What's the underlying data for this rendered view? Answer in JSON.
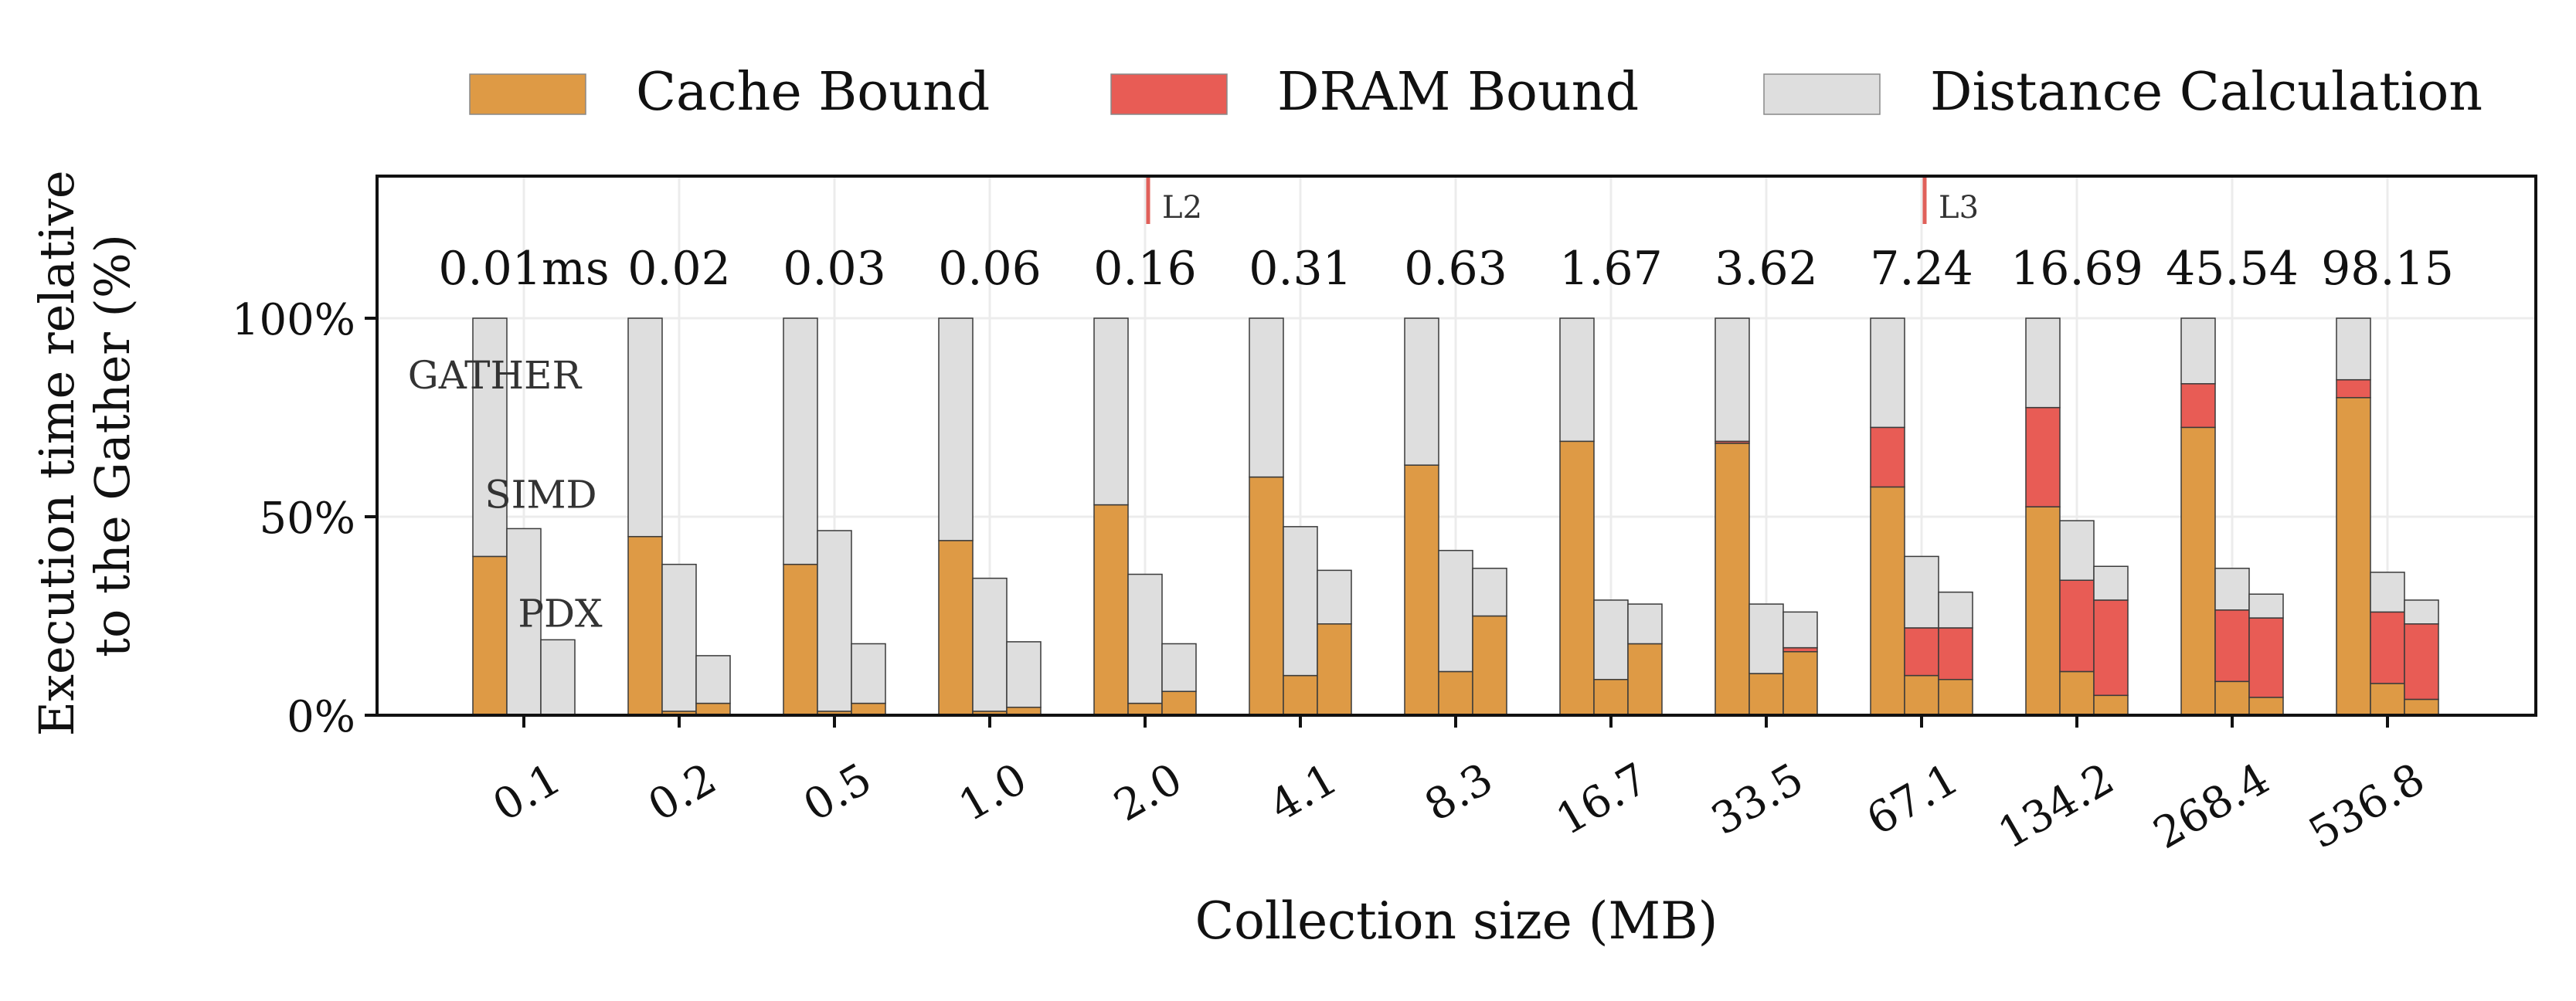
{
  "chart_data": {
    "type": "bar",
    "xlabel": "Collection size (MB)",
    "ylabel_lines": [
      "Execution time relative",
      "to the Gather (%)"
    ],
    "ylim": [
      0,
      1.35
    ],
    "yticks": [
      {
        "value": 0,
        "label": "0%"
      },
      {
        "value": 0.5,
        "label": "50%"
      },
      {
        "value": 1,
        "label": "100%"
      }
    ],
    "grid": true,
    "legend_position": "top",
    "series": [
      {
        "name": "Cache Bound",
        "color": "#de9a45"
      },
      {
        "name": "DRAM Bound",
        "color": "#e85c55"
      },
      {
        "name": "Distance Calculation",
        "color": "#dedede"
      }
    ],
    "methods": [
      "GATHER",
      "SIMD",
      "PDX"
    ],
    "method_label_values": [
      0.85,
      0.55,
      0.25
    ],
    "categories": [
      "0.1",
      "0.2",
      "0.5",
      "1.0",
      "2.0",
      "4.1",
      "8.3",
      "16.7",
      "33.5",
      "67.1",
      "134.2",
      "268.4",
      "536.8"
    ],
    "gather_times": [
      "0.01ms",
      "0.02",
      "0.03",
      "0.06",
      "0.16",
      "0.31",
      "0.63",
      "1.67",
      "3.62",
      "7.24",
      "16.69",
      "45.54",
      "98.15"
    ],
    "cache_markers": [
      {
        "label": "L2",
        "category": "2.0"
      },
      {
        "label": "L3",
        "category": "67.1"
      }
    ],
    "values": {
      "cache_bound": [
        [
          0.4,
          0.0,
          0.0
        ],
        [
          0.45,
          0.01,
          0.03
        ],
        [
          0.38,
          0.01,
          0.03
        ],
        [
          0.44,
          0.01,
          0.02
        ],
        [
          0.53,
          0.03,
          0.06
        ],
        [
          0.6,
          0.1,
          0.23
        ],
        [
          0.63,
          0.11,
          0.25
        ],
        [
          0.69,
          0.09,
          0.18
        ],
        [
          0.685,
          0.105,
          0.16
        ],
        [
          0.575,
          0.1,
          0.09
        ],
        [
          0.525,
          0.11,
          0.05
        ],
        [
          0.725,
          0.085,
          0.045
        ],
        [
          0.8,
          0.08,
          0.04
        ]
      ],
      "dram_bound": [
        [
          0.0,
          0.0,
          0.0
        ],
        [
          0.0,
          0.0,
          0.0
        ],
        [
          0.0,
          0.0,
          0.0
        ],
        [
          0.0,
          0.0,
          0.0
        ],
        [
          0.0,
          0.0,
          0.0
        ],
        [
          0.0,
          0.0,
          0.0
        ],
        [
          0.0,
          0.0,
          0.0
        ],
        [
          0.0,
          0.0,
          0.0
        ],
        [
          0.005,
          0.0,
          0.01
        ],
        [
          0.15,
          0.12,
          0.13
        ],
        [
          0.25,
          0.23,
          0.24
        ],
        [
          0.11,
          0.18,
          0.2
        ],
        [
          0.045,
          0.18,
          0.19
        ]
      ],
      "distance_calculation": [
        [
          0.6,
          0.47,
          0.19
        ],
        [
          0.55,
          0.37,
          0.12
        ],
        [
          0.62,
          0.455,
          0.15
        ],
        [
          0.56,
          0.335,
          0.165
        ],
        [
          0.47,
          0.325,
          0.12
        ],
        [
          0.4,
          0.375,
          0.135
        ],
        [
          0.37,
          0.305,
          0.12
        ],
        [
          0.31,
          0.2,
          0.1
        ],
        [
          0.31,
          0.175,
          0.09
        ],
        [
          0.275,
          0.18,
          0.09
        ],
        [
          0.225,
          0.15,
          0.085
        ],
        [
          0.165,
          0.105,
          0.06
        ],
        [
          0.155,
          0.1,
          0.06
        ]
      ]
    }
  }
}
